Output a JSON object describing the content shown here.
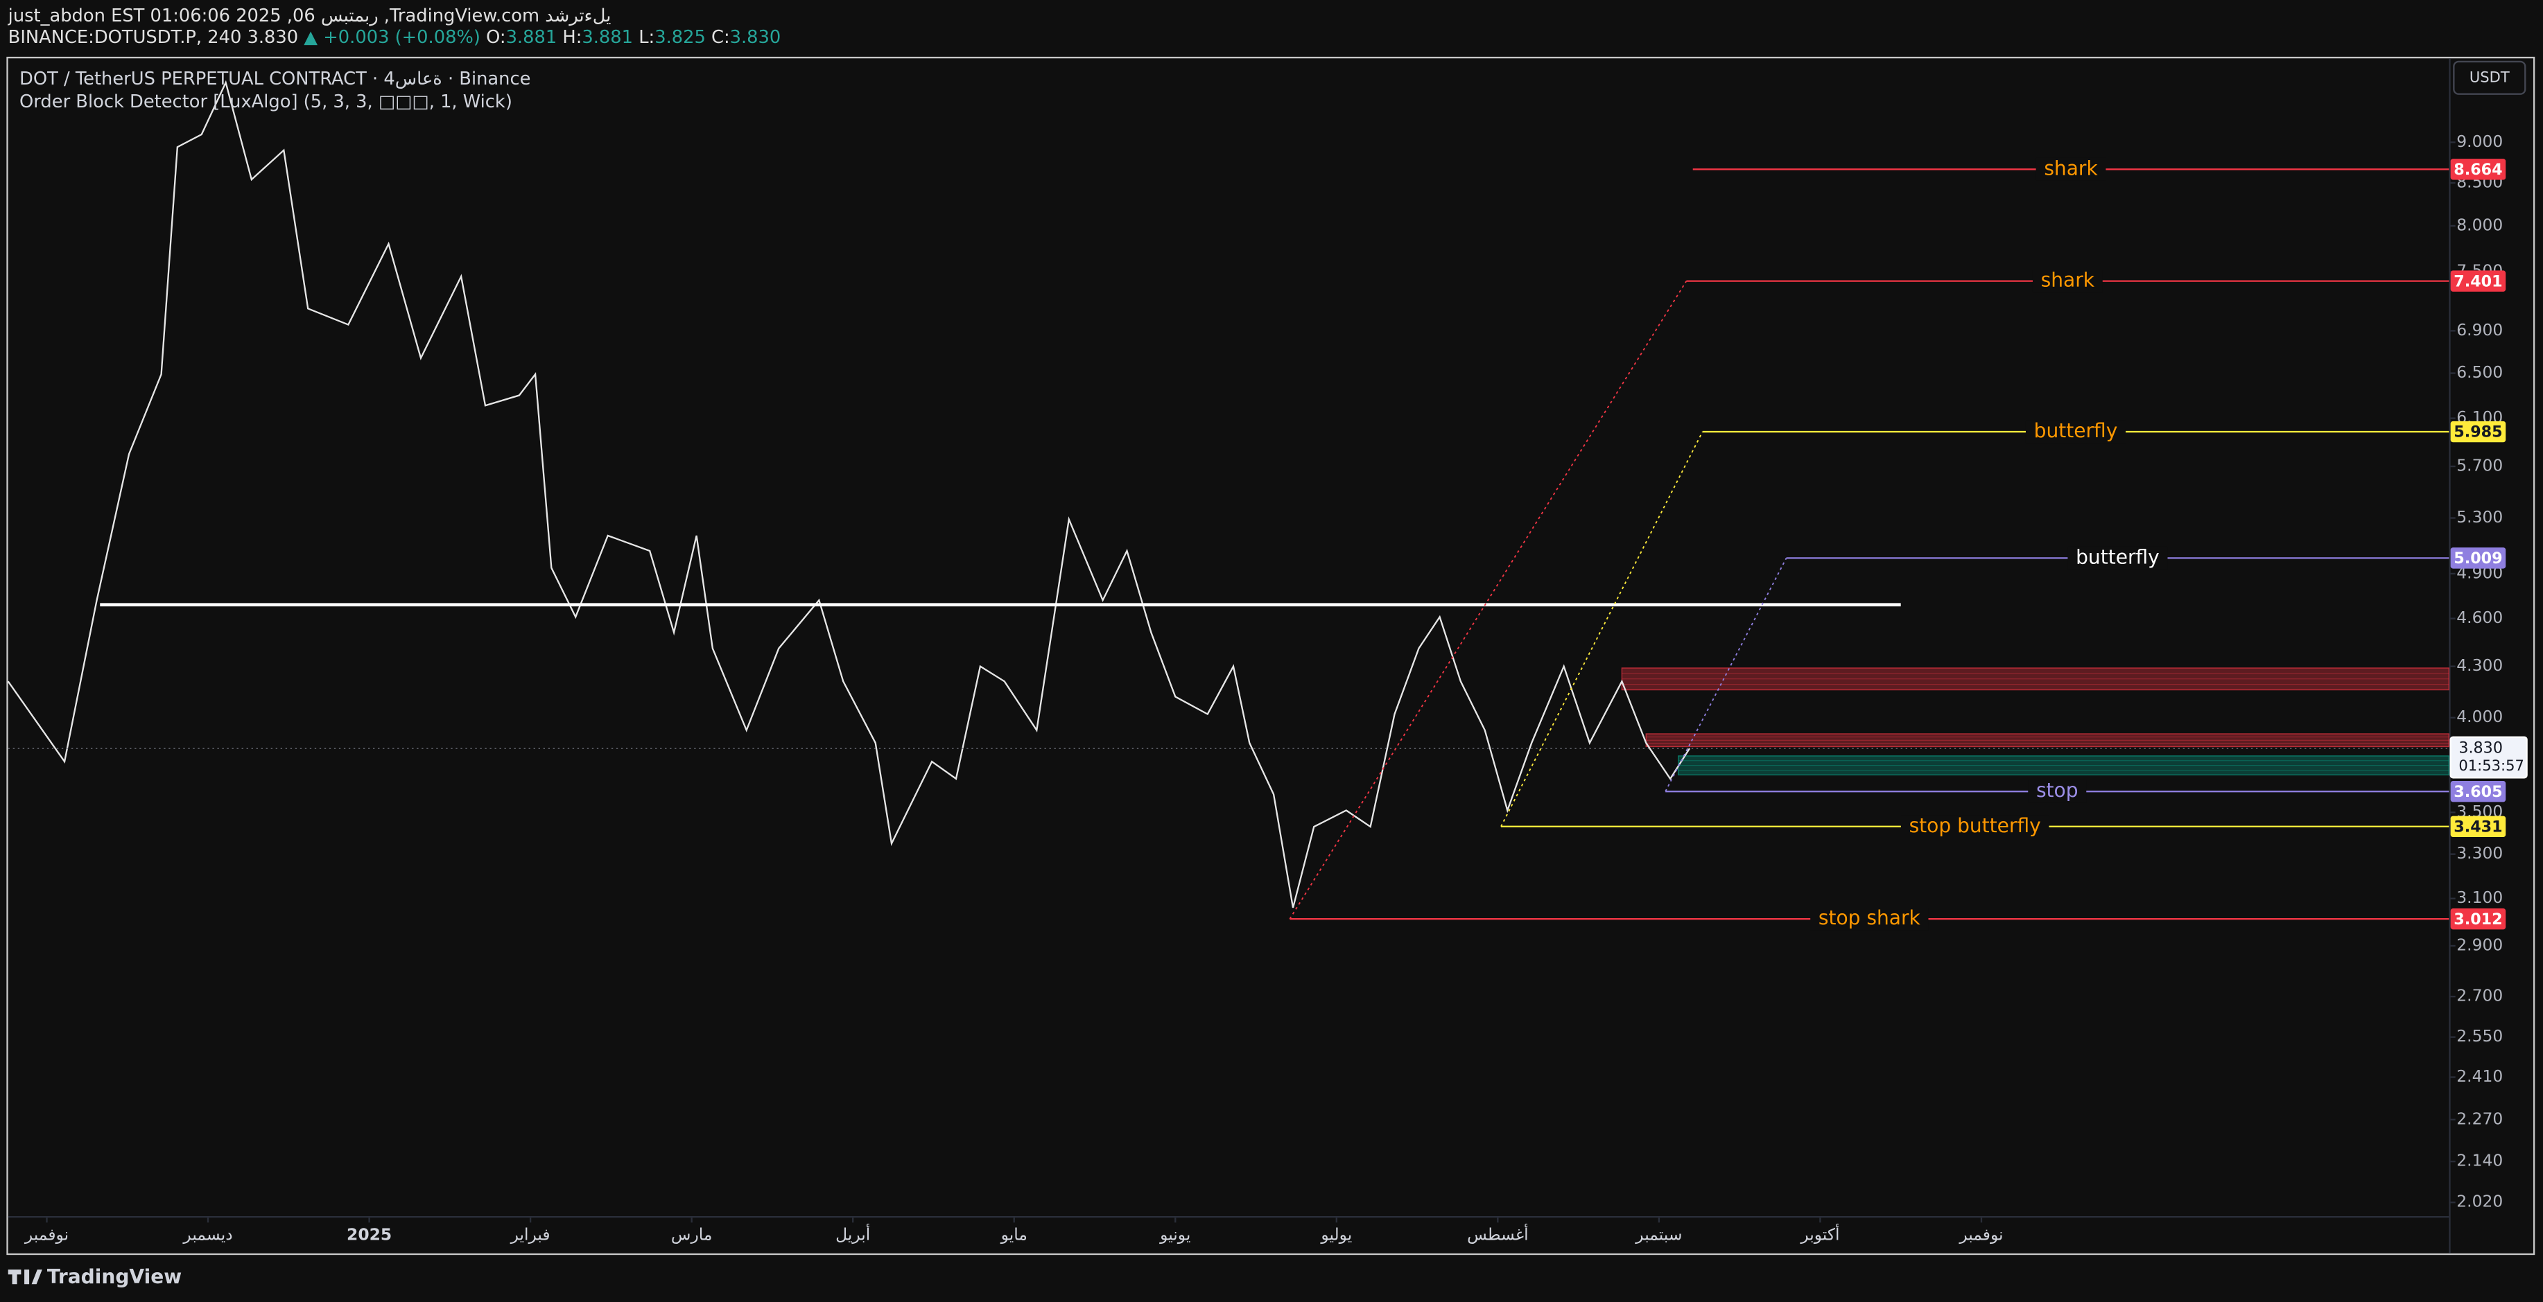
{
  "header": {
    "line1": "just_abdon EST 01:06:06 2025 ,06 ربمتبس ,TradingView.com يلءترشد",
    "symbol": "BINANCE:DOTUSDT.P, 240",
    "last": "3.830",
    "change": "▲ +0.003 (+0.08%)",
    "ohlc": [
      {
        "key": "O:",
        "value": "3.881"
      },
      {
        "key": "H:",
        "value": "3.881"
      },
      {
        "key": "L:",
        "value": "3.825"
      },
      {
        "key": "C:",
        "value": "3.830"
      }
    ]
  },
  "footer": {
    "brand": "TradingView"
  },
  "chart_data": {
    "type": "line",
    "title": "DOT / TetherUS PERPETUAL CONTRACT · 4ةعاس · Binance",
    "subtitle": "Order Block Detector [LuxAlgo] (5, 3, 3, □□□, 1, Wick)",
    "currency": "USDT",
    "log_scale": true,
    "grid": false,
    "color": "#e6e6e6",
    "xlim": [
      -0.24,
      14.9
    ],
    "ylim": [
      1.88,
      10.13
    ],
    "xticks": [
      {
        "value": 0,
        "label": "نوفمبر"
      },
      {
        "value": 1,
        "label": "ديسمبر"
      },
      {
        "value": 2,
        "label": "2025"
      },
      {
        "value": 3,
        "label": "فبراير"
      },
      {
        "value": 4,
        "label": "مارس"
      },
      {
        "value": 5,
        "label": "أبريل"
      },
      {
        "value": 6,
        "label": "مايو"
      },
      {
        "value": 7,
        "label": "يونيو"
      },
      {
        "value": 8,
        "label": "يوليو"
      },
      {
        "value": 9,
        "label": "أغسطس"
      },
      {
        "value": 10,
        "label": "سبتمبر"
      },
      {
        "value": 11,
        "label": "أكتوبر"
      },
      {
        "value": 12,
        "label": "نوفمبر"
      }
    ],
    "yticks": [
      {
        "value": 9,
        "label": "9.000"
      },
      {
        "value": 8.5,
        "label": "8.500"
      },
      {
        "value": 8,
        "label": "8.000"
      },
      {
        "value": 7.5,
        "label": "7.500"
      },
      {
        "value": 6.9,
        "label": "6.900"
      },
      {
        "value": 6.5,
        "label": "6.500"
      },
      {
        "value": 6.1,
        "label": "6.100"
      },
      {
        "value": 5.7,
        "label": "5.700"
      },
      {
        "value": 5.3,
        "label": "5.300"
      },
      {
        "value": 4.9,
        "label": "4.900"
      },
      {
        "value": 4.6,
        "label": "4.600"
      },
      {
        "value": 4.3,
        "label": "4.300"
      },
      {
        "value": 4,
        "label": "4.000"
      },
      {
        "value": 3.5,
        "label": "3.500"
      },
      {
        "value": 3.3,
        "label": "3.300"
      },
      {
        "value": 3.1,
        "label": "3.100"
      },
      {
        "value": 2.9,
        "label": "2.900"
      },
      {
        "value": 2.7,
        "label": "2.700"
      },
      {
        "value": 2.55,
        "label": "2.550"
      },
      {
        "value": 2.41,
        "label": "2.410"
      },
      {
        "value": 2.27,
        "label": "2.270"
      },
      {
        "value": 2.14,
        "label": "2.140"
      },
      {
        "value": 2.02,
        "label": "2.020"
      }
    ],
    "x": [
      -0.24,
      0.11,
      0.31,
      0.51,
      0.71,
      0.81,
      0.96,
      1.11,
      1.27,
      1.47,
      1.62,
      1.87,
      2.12,
      2.32,
      2.57,
      2.72,
      2.93,
      3.03,
      3.13,
      3.28,
      3.48,
      3.74,
      3.89,
      4.03,
      4.13,
      4.34,
      4.54,
      4.79,
      4.94,
      5.14,
      5.24,
      5.49,
      5.64,
      5.79,
      5.94,
      6.14,
      6.34,
      6.55,
      6.7,
      6.85,
      7.0,
      7.2,
      7.36,
      7.46,
      7.61,
      7.73,
      7.86,
      8.06,
      8.21,
      8.36,
      8.51,
      8.64,
      8.77,
      8.92,
      9.06,
      9.21,
      9.41,
      9.57,
      9.77,
      9.92,
      10.07,
      10.19
    ],
    "values": [
      4.21,
      3.76,
      4.72,
      5.8,
      6.49,
      8.94,
      9.1,
      9.79,
      8.54,
      8.9,
      7.12,
      6.96,
      7.8,
      6.64,
      7.45,
      6.21,
      6.3,
      6.49,
      4.94,
      4.61,
      5.17,
      5.06,
      4.51,
      5.17,
      4.41,
      3.93,
      4.41,
      4.72,
      4.21,
      3.86,
      3.35,
      3.76,
      3.67,
      4.3,
      4.21,
      3.93,
      5.29,
      4.72,
      5.06,
      4.51,
      4.12,
      4.02,
      4.3,
      3.86,
      3.59,
      3.06,
      3.43,
      3.51,
      3.43,
      4.02,
      4.41,
      4.61,
      4.21,
      3.93,
      3.51,
      3.86,
      4.3,
      3.86,
      4.21,
      3.86,
      3.67,
      3.83
    ],
    "hline": {
      "value": 4.69,
      "x": [
        0.33,
        11.5
      ],
      "color": "#ffffff"
    },
    "order_blocks": [
      {
        "top": 4.29,
        "bottom": 4.16,
        "x_start": 9.77,
        "color": "#f23645"
      },
      {
        "top": 3.91,
        "bottom": 3.84,
        "x_start": 9.92,
        "color": "#f23645"
      },
      {
        "top": 3.79,
        "bottom": 3.69,
        "x_start": 10.12,
        "color": "#089981"
      }
    ],
    "levels": [
      {
        "label": "shark",
        "value": 8.664,
        "x_start": 10.21,
        "color": "#f23645",
        "label_color": "#ff9800"
      },
      {
        "label": "shark",
        "value": 7.401,
        "x_start": 10.17,
        "color": "#f23645",
        "label_color": "#ff9800"
      },
      {
        "label": "butterfly",
        "value": 5.985,
        "x_start": 10.27,
        "color": "#ffeb3b",
        "label_color": "#ff9800"
      },
      {
        "label": "butterfly",
        "value": 5.009,
        "x_start": 10.79,
        "color": "#8f7fe0",
        "label_color": "#ffffff"
      },
      {
        "label": "stop",
        "value": 3.605,
        "x_start": 10.04,
        "color": "#8f7fe0",
        "label_color": "#9c8fe8"
      },
      {
        "label": "stop butterfly",
        "value": 3.431,
        "x_start": 9.02,
        "color": "#ffeb3b",
        "label_color": "#ff9800"
      },
      {
        "label": "stop shark",
        "value": 3.012,
        "x_start": 7.71,
        "color": "#f23645",
        "label_color": "#ff9800"
      }
    ],
    "last_price": {
      "value": 3.83,
      "label": "3.830",
      "countdown": "01:53:57"
    }
  }
}
